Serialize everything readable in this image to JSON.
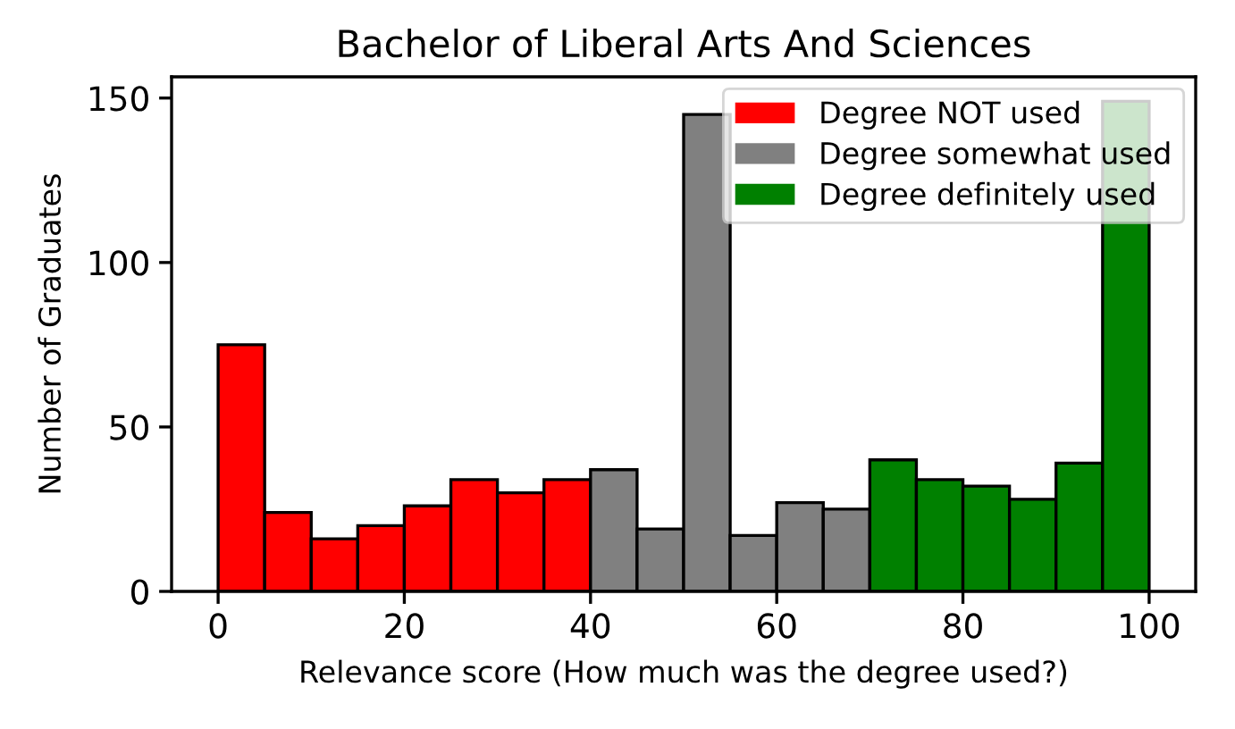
{
  "chart_data": {
    "type": "histogram",
    "title": "Bachelor of Liberal Arts And Sciences",
    "xlabel": "Relevance score (How much was the degree used?)",
    "ylabel": "Number of Graduates",
    "bins": [
      0,
      5,
      10,
      15,
      20,
      25,
      30,
      35,
      40,
      45,
      50,
      55,
      60,
      65,
      70,
      75,
      80,
      85,
      90,
      95,
      100
    ],
    "series": [
      {
        "name": "Degree NOT used",
        "color": "#ff0000",
        "values": [
          75,
          24,
          16,
          20,
          26,
          34,
          30,
          34,
          null,
          null,
          null,
          null,
          null,
          null,
          null,
          null,
          null,
          null,
          null,
          null
        ]
      },
      {
        "name": "Degree somewhat used",
        "color": "#808080",
        "values": [
          null,
          null,
          null,
          null,
          null,
          null,
          null,
          null,
          37,
          19,
          145,
          17,
          27,
          25,
          null,
          null,
          null,
          null,
          null,
          null
        ]
      },
      {
        "name": "Degree definitely used",
        "color": "#008000",
        "values": [
          null,
          null,
          null,
          null,
          null,
          null,
          null,
          null,
          null,
          null,
          null,
          null,
          null,
          null,
          40,
          34,
          32,
          28,
          39,
          149
        ]
      }
    ],
    "xlim": [
      -5,
      105
    ],
    "xticks": [
      0,
      20,
      40,
      60,
      80,
      100
    ],
    "ylim": [
      0,
      156.45
    ],
    "yticks": [
      0,
      50,
      100,
      150
    ],
    "grid": false,
    "legend": "top right"
  }
}
